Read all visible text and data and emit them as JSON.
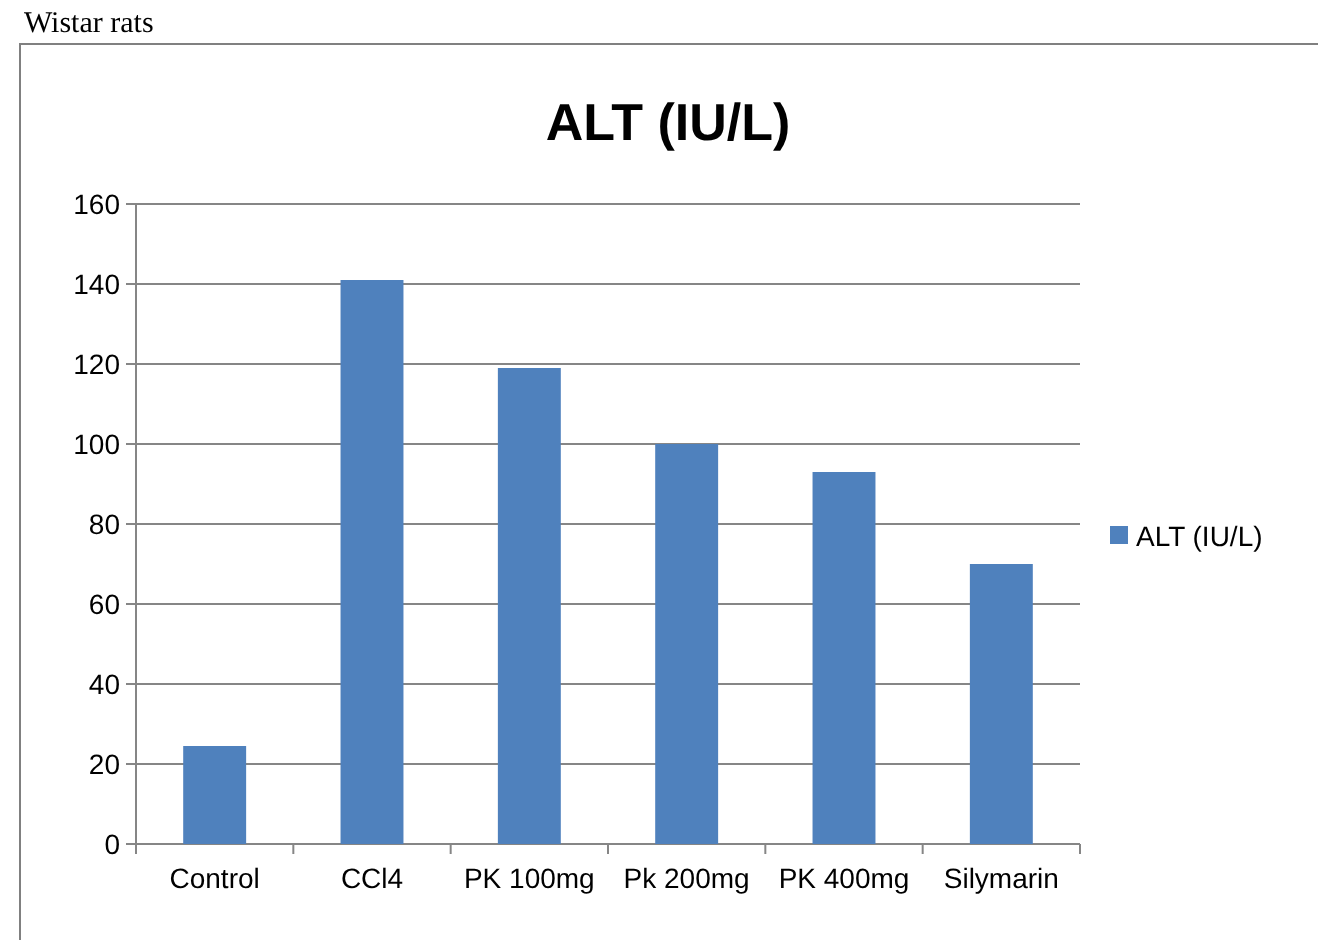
{
  "chart_data": {
    "type": "bar",
    "title": "ALT (IU/L)",
    "categories": [
      "Control",
      "CCl4",
      "PK 100mg",
      "Pk 200mg",
      "PK 400mg",
      "Silymarin"
    ],
    "series": [
      {
        "name": "ALT (IU/L)",
        "color": "#4f81bd",
        "values": [
          24.5,
          141,
          119,
          100,
          93,
          70
        ]
      }
    ],
    "ylim": [
      0,
      160
    ],
    "yticks": [
      0,
      20,
      40,
      60,
      80,
      100,
      120,
      140,
      160
    ],
    "grid": "y",
    "legend": "right",
    "annotations": [
      "Wistar rats"
    ]
  }
}
